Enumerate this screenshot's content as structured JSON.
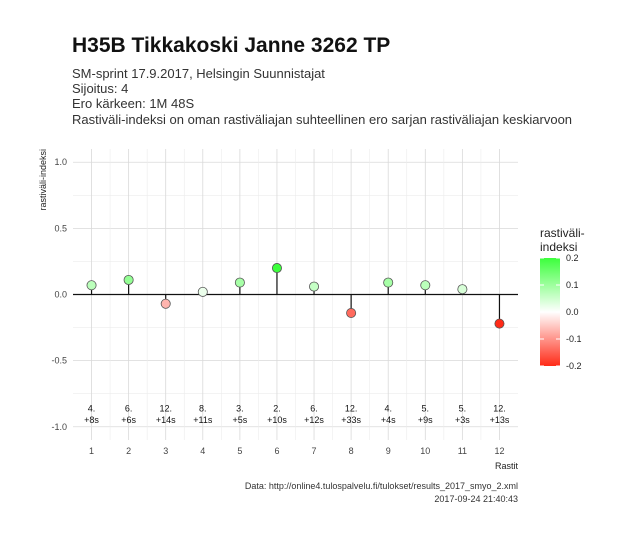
{
  "title": "H35B Tikkakoski Janne 3262 TP",
  "subtitle_lines": [
    "SM-sprint 17.9.2017, Helsingin Suunnistajat",
    "Sijoitus: 4",
    "Ero kärkeen: 1M 48S",
    "Rastiväli-indeksi on oman rastiväliajan suhteellinen ero sarjan rastiväliajan keskiarvoon"
  ],
  "caption_lines": [
    "Data: http://online4.tulospalvelu.fi/tulokset/results_2017_smyo_2.xml",
    "2017-09-24 21:40:43"
  ],
  "chart_data": {
    "type": "scatter",
    "xlabel": "Rastit",
    "ylabel": "rastiväli-indeksi",
    "x": [
      1,
      2,
      3,
      4,
      5,
      6,
      7,
      8,
      9,
      10,
      11,
      12
    ],
    "y": [
      0.07,
      0.11,
      -0.07,
      0.02,
      0.09,
      0.2,
      0.06,
      -0.14,
      0.09,
      0.07,
      0.04,
      -0.22
    ],
    "point_labels": [
      [
        "4.",
        "+8s"
      ],
      [
        "6.",
        "+6s"
      ],
      [
        "12.",
        "+14s"
      ],
      [
        "8.",
        "+11s"
      ],
      [
        "3.",
        "+5s"
      ],
      [
        "2.",
        "+10s"
      ],
      [
        "6.",
        "+12s"
      ],
      [
        "12.",
        "+33s"
      ],
      [
        "4.",
        "+4s"
      ],
      [
        "5.",
        "+9s"
      ],
      [
        "5.",
        "+3s"
      ],
      [
        "12.",
        "+13s"
      ]
    ],
    "x_ticks": [
      "1",
      "2",
      "3",
      "4",
      "5",
      "6",
      "7",
      "8",
      "9",
      "10",
      "11",
      "12"
    ],
    "y_ticks": [
      "-1.0",
      "-0.5",
      "0.0",
      "0.5",
      "1.0"
    ],
    "y_tick_values": [
      -1.0,
      -0.5,
      0.0,
      0.5,
      1.0
    ],
    "ylim": [
      -1.0,
      1.0
    ],
    "xlim": [
      0.5,
      12.5
    ],
    "grid": true,
    "legend": {
      "title_lines": [
        "rastiväli-",
        "indeksi"
      ],
      "placement": "right",
      "ticks": [
        "0.2",
        "0.1",
        "0.0",
        "-0.1",
        "-0.2"
      ],
      "tick_values": [
        0.2,
        0.1,
        0.0,
        -0.1,
        -0.2
      ],
      "range": [
        -0.2,
        0.2
      ],
      "color_low": "#ff2a17",
      "color_mid": "#ffffff",
      "color_high": "#3cff3c"
    }
  }
}
